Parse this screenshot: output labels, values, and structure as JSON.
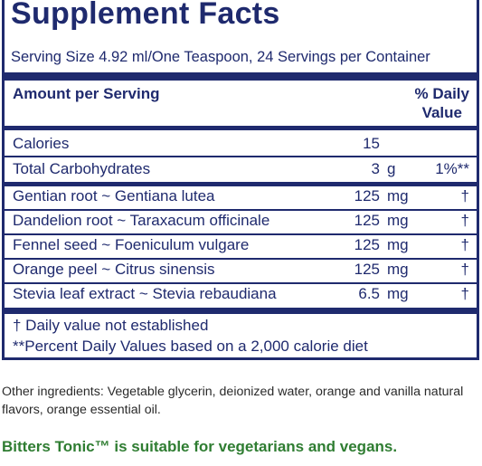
{
  "panel": {
    "title": "Supplement Facts",
    "serving": "Serving Size 4.92 ml/One Teaspoon, 24 Servings per Container",
    "amount_header": "Amount per Serving",
    "dv_header_line1": "% Daily",
    "dv_header_line2": "Value",
    "calories": {
      "name": "Calories",
      "amount": "15",
      "unit": "",
      "dv": ""
    },
    "carbs": {
      "name": "Total Carbohydrates",
      "amount": "3",
      "unit": "g",
      "dv": "1%**"
    },
    "ingredients": [
      {
        "name": "Gentian root ~ Gentiana lutea",
        "amount": "125",
        "unit": "mg",
        "dv": "†"
      },
      {
        "name": "Dandelion root ~ Taraxacum officinale",
        "amount": "125",
        "unit": "mg",
        "dv": "†"
      },
      {
        "name": "Fennel seed ~ Foeniculum vulgare",
        "amount": "125",
        "unit": "mg",
        "dv": "†"
      },
      {
        "name": "Orange peel ~ Citrus sinensis",
        "amount": "125",
        "unit": "mg",
        "dv": "†"
      },
      {
        "name": "Stevia leaf extract ~ Stevia rebaudiana",
        "amount": "6.5",
        "unit": "mg",
        "dv": "†"
      }
    ],
    "footnote1": "† Daily value not established",
    "footnote2": "**Percent Daily Values based on a 2,000 calorie diet"
  },
  "other_ingredients": "Other ingredients: Vegetable glycerin, deionized water, orange and vanilla natural flavors, orange essential oil.",
  "vegan_statement": "Bitters Tonic™ is suitable for vegetarians and vegans.",
  "colors": {
    "navy": "#1f2a6e",
    "green": "#2f7d32"
  }
}
